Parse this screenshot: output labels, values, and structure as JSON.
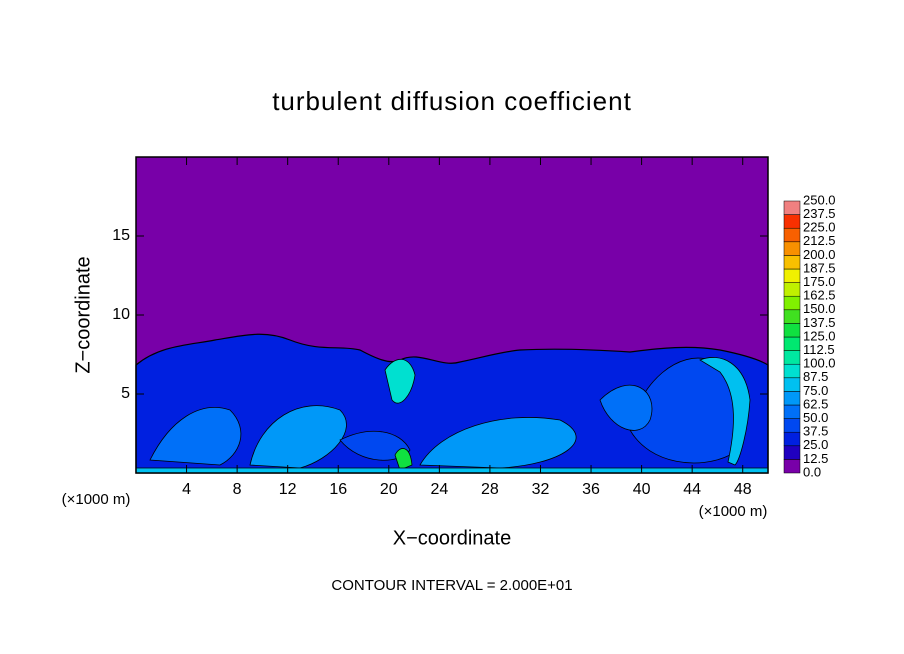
{
  "chart_data": {
    "type": "contour",
    "title": "turbulent diffusion coefficient",
    "x_label": "X−coordinate",
    "y_label": "Z−coordinate",
    "x_unit": "(×1000 m)",
    "y_unit": "(×1000 m)",
    "footer": "CONTOUR INTERVAL = 2.000E+01",
    "background_color": "#7800a8",
    "xlim": [
      0,
      50
    ],
    "xticks": [
      4,
      8,
      12,
      16,
      20,
      24,
      28,
      32,
      36,
      40,
      44,
      48
    ],
    "ylim": [
      0,
      20
    ],
    "yticks": [
      5,
      10,
      15
    ],
    "colorbar": {
      "levels": [
        {
          "value": 0,
          "label": "0.0"
        },
        {
          "value": 12.5,
          "label": "12.5"
        },
        {
          "value": 25,
          "label": "25.0"
        },
        {
          "value": 37.5,
          "label": "37.5"
        },
        {
          "value": 50,
          "label": "50.0"
        },
        {
          "value": 62.5,
          "label": "62.5"
        },
        {
          "value": 75,
          "label": "75.0"
        },
        {
          "value": 87.5,
          "label": "87.5"
        },
        {
          "value": 100,
          "label": "100.0"
        },
        {
          "value": 112.5,
          "label": "112.5"
        },
        {
          "value": 125,
          "label": "125.0"
        },
        {
          "value": 137.5,
          "label": "137.5"
        },
        {
          "value": 150,
          "label": "150.0"
        },
        {
          "value": 162.5,
          "label": "162.5"
        },
        {
          "value": 175,
          "label": "175.0"
        },
        {
          "value": 187.5,
          "label": "187.5"
        },
        {
          "value": 200,
          "label": "200.0"
        },
        {
          "value": 212.5,
          "label": "212.5"
        },
        {
          "value": 225,
          "label": "225.0"
        },
        {
          "value": 237.5,
          "label": "237.5"
        },
        {
          "value": 250,
          "label": "250.0"
        }
      ],
      "colors": [
        "#7800a8",
        "#2000c0",
        "#0020e0",
        "#0048f0",
        "#0070f8",
        "#0098f8",
        "#00c0f0",
        "#00e0d0",
        "#00e8a0",
        "#00e870",
        "#10e040",
        "#40e020",
        "#80f000",
        "#c0f000",
        "#f0f000",
        "#f8c000",
        "#f89000",
        "#f86000",
        "#f83000",
        "#f08080"
      ]
    }
  }
}
